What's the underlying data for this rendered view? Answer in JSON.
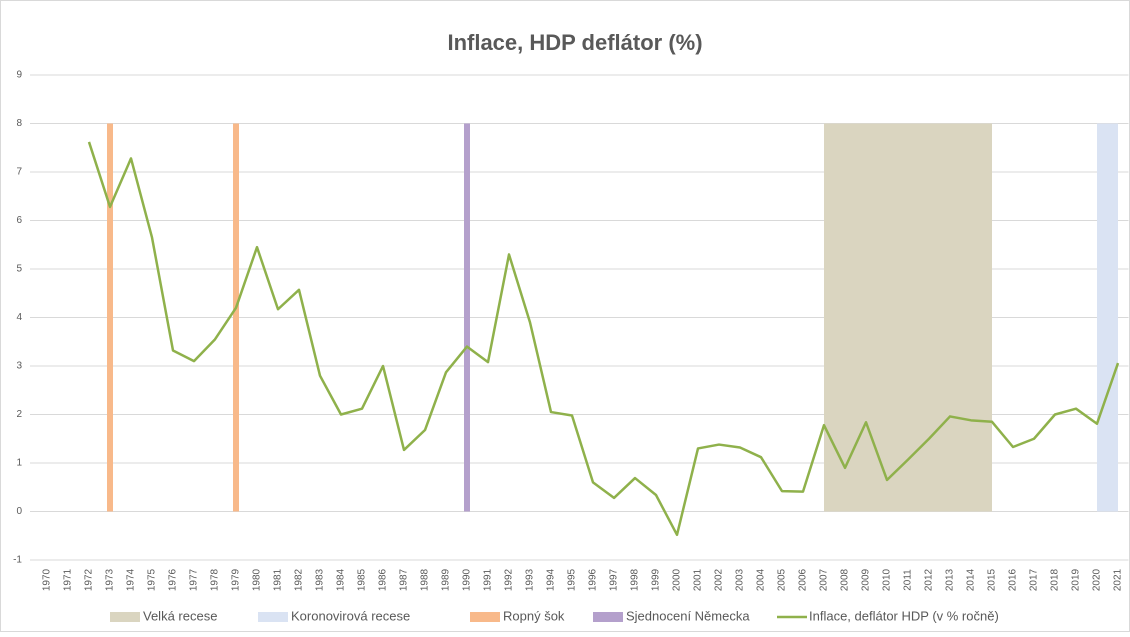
{
  "chart_data": {
    "type": "combo",
    "title": "Inflace, HDP deflátor (%)",
    "categories": [
      "1970",
      "1971",
      "1972",
      "1973",
      "1974",
      "1975",
      "1976",
      "1977",
      "1978",
      "1979",
      "1980",
      "1981",
      "1982",
      "1983",
      "1984",
      "1985",
      "1986",
      "1987",
      "1988",
      "1989",
      "1990",
      "1991",
      "1992",
      "1993",
      "1994",
      "1995",
      "1996",
      "1997",
      "1998",
      "1999",
      "2000",
      "2001",
      "2002",
      "2003",
      "2004",
      "2005",
      "2006",
      "2007",
      "2008",
      "2009",
      "2010",
      "2011",
      "2012",
      "2013",
      "2014",
      "2015",
      "2016",
      "2017",
      "2018",
      "2019",
      "2020",
      "2021"
    ],
    "series": [
      {
        "name": "Velká recese",
        "color": "#dad5c0",
        "kind": "span",
        "values": [
          null,
          null,
          null,
          null,
          null,
          null,
          null,
          null,
          null,
          null,
          null,
          null,
          null,
          null,
          null,
          null,
          null,
          null,
          null,
          null,
          null,
          null,
          null,
          null,
          null,
          null,
          null,
          null,
          null,
          null,
          null,
          null,
          null,
          null,
          null,
          null,
          null,
          8,
          8,
          8,
          8,
          8,
          8,
          8,
          8,
          8,
          null,
          null,
          null,
          null,
          null,
          null
        ]
      },
      {
        "name": "Koronovirová recese",
        "color": "#dae3f3",
        "kind": "span",
        "values": [
          null,
          null,
          null,
          null,
          null,
          null,
          null,
          null,
          null,
          null,
          null,
          null,
          null,
          null,
          null,
          null,
          null,
          null,
          null,
          null,
          null,
          null,
          null,
          null,
          null,
          null,
          null,
          null,
          null,
          null,
          null,
          null,
          null,
          null,
          null,
          null,
          null,
          null,
          null,
          null,
          null,
          null,
          null,
          null,
          null,
          null,
          null,
          null,
          null,
          null,
          8,
          8
        ]
      },
      {
        "name": "Ropný šok",
        "color": "#f8b98a",
        "kind": "span",
        "values": [
          null,
          null,
          null,
          8,
          null,
          null,
          null,
          null,
          null,
          8,
          null,
          null,
          null,
          null,
          null,
          null,
          null,
          null,
          null,
          null,
          null,
          null,
          null,
          null,
          null,
          null,
          null,
          null,
          null,
          null,
          null,
          null,
          null,
          null,
          null,
          null,
          null,
          null,
          null,
          null,
          null,
          null,
          null,
          null,
          null,
          null,
          null,
          null,
          null,
          null,
          null,
          null
        ]
      },
      {
        "name": "Sjednocení Německa",
        "color": "#b4a0cc",
        "kind": "span",
        "values": [
          null,
          null,
          null,
          null,
          null,
          null,
          null,
          null,
          null,
          null,
          null,
          null,
          null,
          null,
          null,
          null,
          null,
          null,
          null,
          null,
          8,
          null,
          null,
          null,
          null,
          null,
          null,
          null,
          null,
          null,
          null,
          null,
          null,
          null,
          null,
          null,
          null,
          null,
          null,
          null,
          null,
          null,
          null,
          null,
          null,
          null,
          null,
          null,
          null,
          null,
          null,
          null
        ]
      },
      {
        "name": "Inflace, deflátor HDP (v % ročně)",
        "color": "#8fb14b",
        "kind": "line",
        "values": [
          null,
          null,
          7.62,
          6.28,
          7.28,
          5.65,
          3.32,
          3.1,
          3.55,
          4.2,
          5.45,
          4.17,
          4.57,
          2.8,
          2.0,
          2.12,
          3.0,
          1.27,
          1.68,
          2.87,
          3.4,
          3.08,
          5.3,
          3.9,
          2.05,
          1.98,
          0.6,
          0.28,
          0.69,
          0.34,
          -0.48,
          1.3,
          1.38,
          1.32,
          1.12,
          0.42,
          0.41,
          1.78,
          0.9,
          1.84,
          0.65,
          1.07,
          1.5,
          1.96,
          1.88,
          1.85,
          1.33,
          1.5,
          2.0,
          2.12,
          1.81,
          3.06
        ]
      }
    ],
    "ylim": [
      -1,
      9
    ],
    "yticks": [
      -1,
      0,
      1,
      2,
      3,
      4,
      5,
      6,
      7,
      8,
      9
    ],
    "grid": true,
    "legend": "bottom"
  }
}
